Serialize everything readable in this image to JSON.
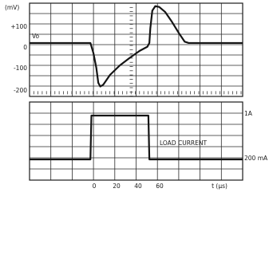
{
  "chart_data": [
    {
      "type": "line",
      "ylabel": "(mV)",
      "ylim": [
        -215,
        160
      ],
      "xlim": [
        -62,
        155
      ],
      "grid": true,
      "y_ticks": [
        "+100",
        "0",
        "-100",
        "-200"
      ],
      "y_tick_values": [
        100,
        0,
        -100,
        -200
      ],
      "series": [
        {
          "name": "Vo",
          "points": [
            [
              -62,
              0
            ],
            [
              0,
              0
            ],
            [
              3,
              -40
            ],
            [
              6,
              -100
            ],
            [
              8,
              -160
            ],
            [
              10,
              -175
            ],
            [
              13,
              -168
            ],
            [
              20,
              -128
            ],
            [
              30,
              -90
            ],
            [
              40,
              -60
            ],
            [
              50,
              -32
            ],
            [
              58,
              -15
            ],
            [
              60,
              0
            ],
            [
              61,
              60
            ],
            [
              63,
              130
            ],
            [
              66,
              148
            ],
            [
              70,
              145
            ],
            [
              76,
              125
            ],
            [
              83,
              85
            ],
            [
              90,
              40
            ],
            [
              96,
              5
            ],
            [
              100,
              0
            ],
            [
              155,
              0
            ]
          ]
        }
      ]
    },
    {
      "type": "line",
      "xlabel": "t (µs)",
      "xlim": [
        -62,
        155
      ],
      "grid": true,
      "x_ticks": [
        "0",
        "20",
        "40",
        "60"
      ],
      "x_tick_values": [
        0,
        20,
        40,
        60
      ],
      "right_ticks": [
        "1A",
        "200 mA"
      ],
      "right_tick_values": [
        1,
        0.2
      ],
      "annotations": [
        "LOAD CURRENT"
      ],
      "series": [
        {
          "name": "LOAD CURRENT",
          "points": [
            [
              -62,
              0.2
            ],
            [
              0,
              0.2
            ],
            [
              1,
              1
            ],
            [
              59,
              1
            ],
            [
              60,
              0.2
            ],
            [
              155,
              0.2
            ]
          ]
        }
      ]
    }
  ]
}
